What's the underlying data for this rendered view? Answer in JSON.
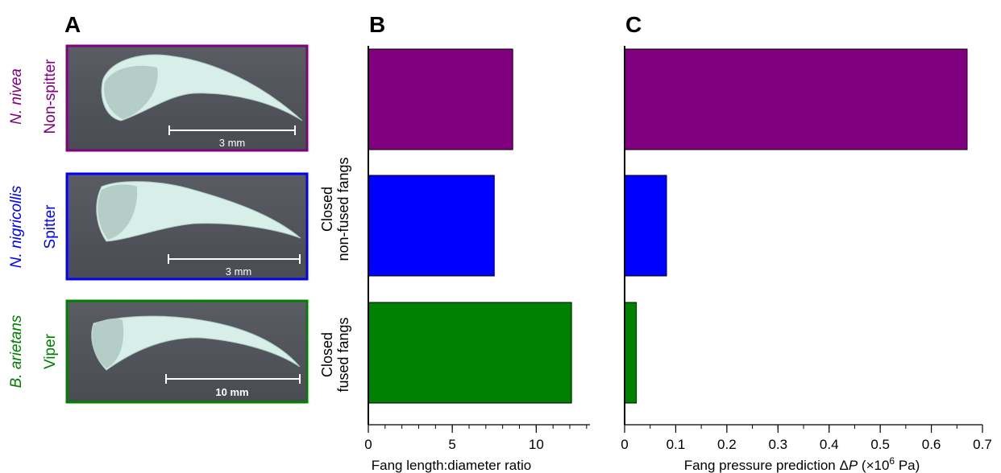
{
  "panels": {
    "a_letter": "A",
    "b_letter": "B",
    "c_letter": "C"
  },
  "group_labels": {
    "top_line1": "Closed",
    "top_line2": "non-fused fangs",
    "bottom_line1": "Closed",
    "bottom_line2": "fused fangs"
  },
  "specimens": [
    {
      "species": "N. nivea",
      "role": "Non-spitter",
      "scale": "3 mm",
      "color": "#800080"
    },
    {
      "species": "N. nigricollis",
      "role": "Spitter",
      "scale": "3 mm",
      "color": "#0000ff"
    },
    {
      "species": "B. arietans",
      "role": "Viper",
      "scale": "10 mm",
      "color": "#008000"
    }
  ],
  "chart_data": [
    {
      "type": "bar",
      "orientation": "horizontal",
      "categories": [
        "N. nivea",
        "N. nigricollis",
        "B. arietans"
      ],
      "values": [
        8.6,
        7.5,
        12.1
      ],
      "colors": [
        "#800080",
        "#0000ff",
        "#008000"
      ],
      "xlabel": "Fang length:diameter ratio",
      "xlim": [
        0,
        13.2
      ],
      "xticks": [
        0,
        5,
        10
      ],
      "xminor": 1,
      "title": ""
    },
    {
      "type": "bar",
      "orientation": "horizontal",
      "categories": [
        "N. nivea",
        "N. nigricollis",
        "B. arietans"
      ],
      "values": [
        0.67,
        0.082,
        0.023
      ],
      "colors": [
        "#800080",
        "#0000ff",
        "#008000"
      ],
      "xlabel_prefix": "Fang pressure prediction Δ",
      "xlabel_var": "P",
      "xlabel_open": " (",
      "xlabel_times": "×",
      "xlabel_base": "10",
      "xlabel_exp": "6",
      "xlabel_unit": " Pa)",
      "xlim": [
        0,
        0.7
      ],
      "xticks": [
        0,
        0.1,
        0.2,
        0.3,
        0.4,
        0.5,
        0.6,
        0.7
      ],
      "xminor": 0.05,
      "title": ""
    }
  ]
}
